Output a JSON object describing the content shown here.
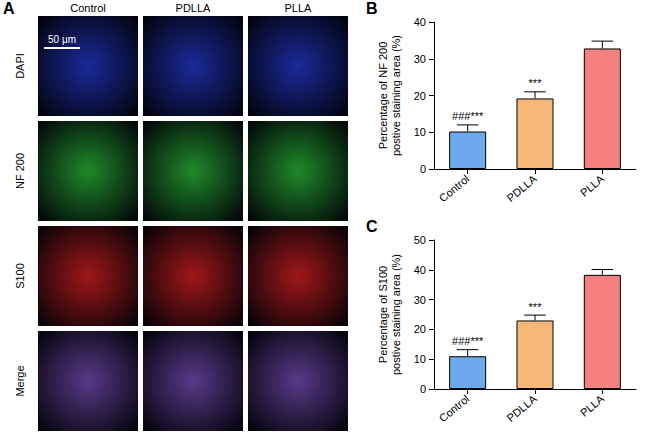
{
  "figure": {
    "panels": [
      {
        "letter": "A",
        "columns": [
          "Control",
          "PDLLA",
          "PLLA"
        ],
        "rows": [
          "DAPI",
          "NF 200",
          "S100",
          "Merge"
        ],
        "scale_bar": "50 μm"
      }
    ]
  },
  "chart_data": [
    {
      "panel": "B",
      "type": "bar",
      "categories": [
        "Control",
        "PDLLA",
        "PLLA"
      ],
      "values": [
        10.2,
        19.2,
        32.8
      ],
      "errors": [
        1.8,
        1.8,
        2.0
      ],
      "colors": [
        "#6ea9ef",
        "#f6b878",
        "#f47f7f"
      ],
      "ylabel": "Percentage of NF 200 postive staining area (%)",
      "ylim": [
        0,
        40
      ],
      "yticks": [
        0,
        10,
        20,
        30,
        40
      ],
      "grid": false,
      "annotations": [
        {
          "category": "Control",
          "text": "###***"
        },
        {
          "category": "PDLLA",
          "text": "***"
        }
      ]
    },
    {
      "panel": "C",
      "type": "bar",
      "categories": [
        "Control",
        "PDLLA",
        "PLLA"
      ],
      "values": [
        11.0,
        23.0,
        38.3
      ],
      "errors": [
        2.2,
        1.8,
        1.8
      ],
      "colors": [
        "#6ea9ef",
        "#f6b878",
        "#f47f7f"
      ],
      "ylabel": "Percentage of S100 postive staining area (%)",
      "ylim": [
        0,
        50
      ],
      "yticks": [
        0,
        10,
        20,
        30,
        40,
        50
      ],
      "grid": false,
      "annotations": [
        {
          "category": "Control",
          "text": "###***"
        },
        {
          "category": "PDLLA",
          "text": "***"
        }
      ]
    }
  ]
}
